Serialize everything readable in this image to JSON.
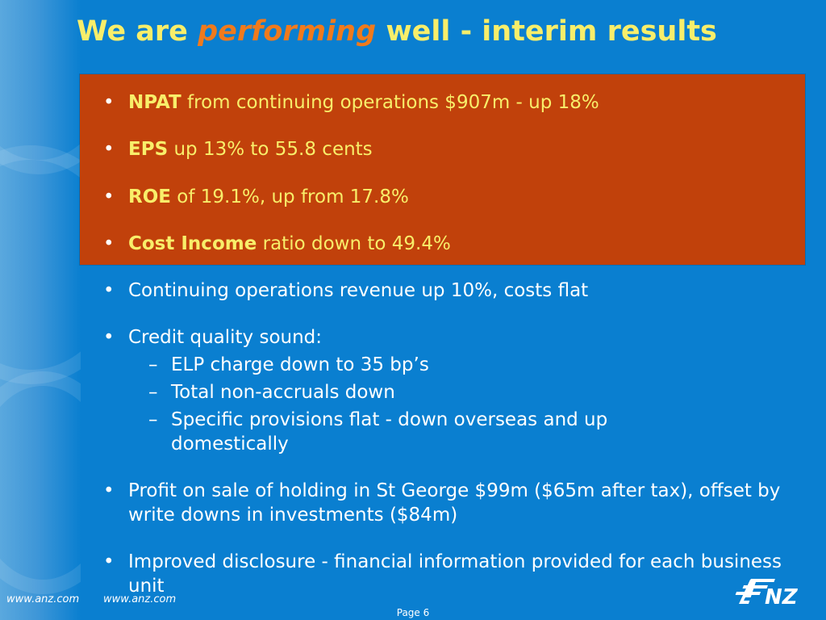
{
  "slide": {
    "title_prefix": "We are",
    "title_accent": "performing",
    "title_suffix": "well - interim results"
  },
  "highlights": [
    {
      "bold": "NPAT",
      "rest": "from continuing operations $907m - up 18%"
    },
    {
      "bold": "EPS",
      "rest": "up 13% to 55.8 cents"
    },
    {
      "bold": "ROE",
      "rest": "of 19.1%, up from 17.8%"
    },
    {
      "bold": "Cost Income",
      "rest": "ratio down to 49.4%"
    }
  ],
  "bullets": [
    {
      "text": "Continuing operations revenue up 10%, costs flat"
    },
    {
      "text": "Credit quality sound:",
      "subs": [
        "ELP charge down to 35 bp’s",
        "Total non-accruals down",
        "Specific provisions flat - down overseas and up domestically"
      ]
    },
    {
      "text": "Profit on sale of holding in St George $99m ($65m after tax), offset by write downs in investments ($84m)"
    },
    {
      "text": "Improved disclosure - financial information provided for each business unit"
    }
  ],
  "bullet_glyph": "•",
  "dash_glyph": "–",
  "footer": {
    "url_left": "www.anz.com",
    "url_right": "www.anz.com",
    "page": "Page 6"
  },
  "colors": {
    "background": "#0a7fd0",
    "highlight_box": "#c1410b",
    "title": "#f8ee6a",
    "accent": "#f07a1c"
  },
  "logo_icon": "anz-logo"
}
